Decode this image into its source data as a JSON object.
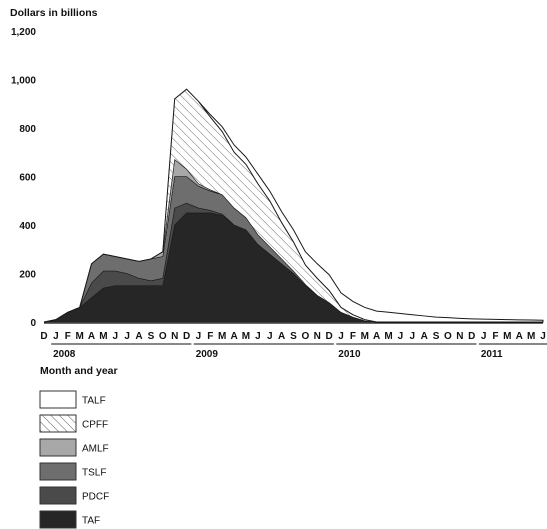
{
  "chart_data": {
    "type": "area",
    "stacked": true,
    "ylabel": "Dollars in billions",
    "xlabel": "Month and year",
    "ylim": [
      0,
      1200
    ],
    "yticks": [
      "0",
      "200",
      "400",
      "600",
      "800",
      "1,000",
      "1,200"
    ],
    "y_tick_values": [
      0,
      200,
      400,
      600,
      800,
      1000,
      1200
    ],
    "months": [
      "D",
      "J",
      "F",
      "M",
      "A",
      "M",
      "J",
      "J",
      "A",
      "S",
      "O",
      "N",
      "D",
      "J",
      "F",
      "M",
      "A",
      "M",
      "J",
      "J",
      "A",
      "S",
      "O",
      "N",
      "D",
      "J",
      "F",
      "M",
      "A",
      "M",
      "J",
      "J",
      "A",
      "S",
      "O",
      "N",
      "D",
      "J",
      "F",
      "M",
      "A",
      "M",
      "J"
    ],
    "years": [
      {
        "label": "2008",
        "start_month_index": 1,
        "end_month_index": 12
      },
      {
        "label": "2009",
        "start_month_index": 13,
        "end_month_index": 24
      },
      {
        "label": "2010",
        "start_month_index": 25,
        "end_month_index": 36
      },
      {
        "label": "2011",
        "start_month_index": 37,
        "end_month_index": 42
      }
    ],
    "series": [
      {
        "name": "TAF",
        "fill": "#262626",
        "values": [
          0,
          10,
          40,
          60,
          100,
          140,
          150,
          150,
          150,
          150,
          150,
          400,
          450,
          450,
          450,
          440,
          400,
          380,
          320,
          280,
          240,
          200,
          150,
          110,
          80,
          40,
          20,
          5,
          0,
          0,
          0,
          0,
          0,
          0,
          0,
          0,
          0,
          0,
          0,
          0,
          0,
          0,
          0
        ]
      },
      {
        "name": "PDCF",
        "fill": "#4a4a4a",
        "values": [
          0,
          0,
          0,
          0,
          60,
          70,
          60,
          50,
          30,
          20,
          30,
          70,
          40,
          20,
          10,
          5,
          0,
          0,
          0,
          0,
          0,
          0,
          0,
          0,
          0,
          0,
          0,
          0,
          0,
          0,
          0,
          0,
          0,
          0,
          0,
          0,
          0,
          0,
          0,
          0,
          0,
          0,
          0
        ]
      },
      {
        "name": "TSLF",
        "fill": "#6e6e6e",
        "values": [
          0,
          0,
          0,
          0,
          80,
          70,
          60,
          60,
          70,
          90,
          90,
          130,
          110,
          90,
          80,
          80,
          70,
          50,
          40,
          30,
          20,
          10,
          5,
          0,
          0,
          0,
          0,
          0,
          0,
          0,
          0,
          0,
          0,
          0,
          0,
          0,
          0,
          0,
          0,
          0,
          0,
          0,
          0
        ]
      },
      {
        "name": "AMLF",
        "fill": "#a8a8a8",
        "values": [
          0,
          0,
          0,
          0,
          0,
          0,
          0,
          0,
          0,
          0,
          20,
          70,
          30,
          10,
          5,
          0,
          0,
          0,
          0,
          0,
          0,
          0,
          0,
          0,
          0,
          0,
          0,
          0,
          0,
          0,
          0,
          0,
          0,
          0,
          0,
          0,
          0,
          0,
          0,
          0,
          0,
          0,
          0
        ]
      },
      {
        "name": "CPFF",
        "fill": "hatch",
        "values": [
          0,
          0,
          0,
          0,
          0,
          0,
          0,
          0,
          0,
          0,
          0,
          250,
          330,
          340,
          300,
          260,
          230,
          220,
          210,
          190,
          150,
          120,
          80,
          70,
          50,
          20,
          10,
          5,
          0,
          0,
          0,
          0,
          0,
          0,
          0,
          0,
          0,
          0,
          0,
          0,
          0,
          0,
          0
        ]
      },
      {
        "name": "TALF",
        "fill": "#ffffff",
        "values": [
          0,
          0,
          0,
          0,
          0,
          0,
          0,
          0,
          0,
          0,
          0,
          0,
          0,
          0,
          10,
          20,
          30,
          30,
          40,
          40,
          45,
          50,
          55,
          60,
          65,
          60,
          55,
          50,
          45,
          40,
          35,
          30,
          25,
          20,
          18,
          15,
          13,
          12,
          11,
          10,
          9,
          8,
          7
        ]
      }
    ],
    "legend_order": [
      "TALF",
      "CPFF",
      "AMLF",
      "TSLF",
      "PDCF",
      "TAF"
    ],
    "grid": false,
    "legend_position": "bottom-left"
  }
}
